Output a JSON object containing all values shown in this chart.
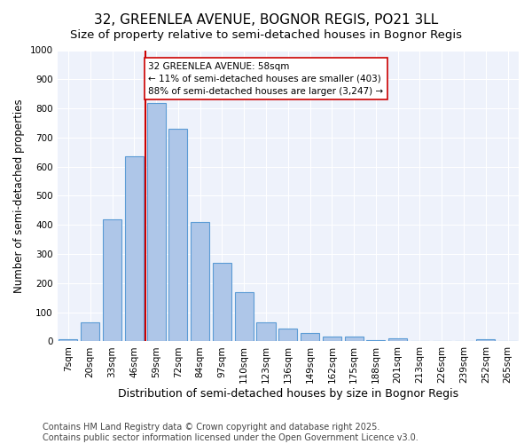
{
  "title1": "32, GREENLEA AVENUE, BOGNOR REGIS, PO21 3LL",
  "title2": "Size of property relative to semi-detached houses in Bognor Regis",
  "xlabel": "Distribution of semi-detached houses by size in Bognor Regis",
  "ylabel": "Number of semi-detached properties",
  "categories": [
    "7sqm",
    "20sqm",
    "33sqm",
    "46sqm",
    "59sqm",
    "72sqm",
    "84sqm",
    "97sqm",
    "110sqm",
    "123sqm",
    "136sqm",
    "149sqm",
    "162sqm",
    "175sqm",
    "188sqm",
    "201sqm",
    "213sqm",
    "226sqm",
    "239sqm",
    "252sqm",
    "265sqm"
  ],
  "values": [
    8,
    65,
    420,
    635,
    820,
    730,
    410,
    270,
    168,
    65,
    43,
    30,
    18,
    18,
    5,
    10,
    0,
    0,
    0,
    8,
    0
  ],
  "bar_color": "#aec6e8",
  "bar_edge_color": "#5b9bd5",
  "vline_color": "#cc0000",
  "annotation_text": "32 GREENLEA AVENUE: 58sqm\n← 11% of semi-detached houses are smaller (403)\n88% of semi-detached houses are larger (3,247) →",
  "annotation_box_color": "#ffffff",
  "annotation_box_edge": "#cc0000",
  "ylim": [
    0,
    1000
  ],
  "yticks": [
    0,
    100,
    200,
    300,
    400,
    500,
    600,
    700,
    800,
    900,
    1000
  ],
  "bg_color": "#eef2fb",
  "footer": "Contains HM Land Registry data © Crown copyright and database right 2025.\nContains public sector information licensed under the Open Government Licence v3.0.",
  "title1_fontsize": 11,
  "title2_fontsize": 9.5,
  "xlabel_fontsize": 9,
  "ylabel_fontsize": 8.5,
  "tick_fontsize": 7.5,
  "footer_fontsize": 7
}
